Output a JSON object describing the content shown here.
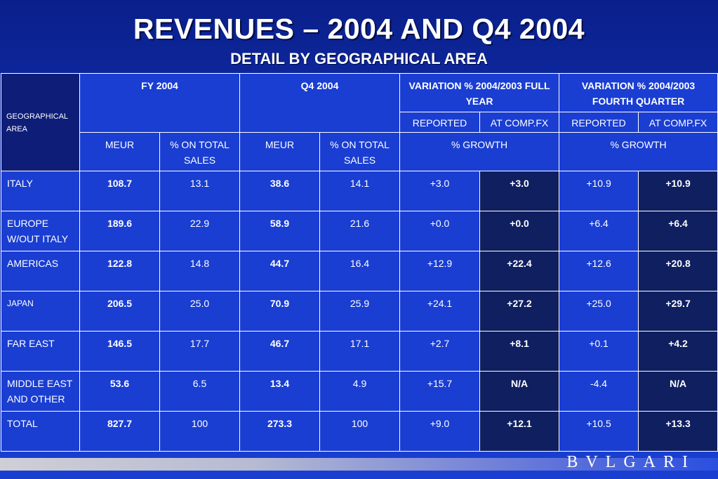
{
  "title": "REVENUES – 2004 AND Q4 2004",
  "subtitle": "DETAIL BY GEOGRAPHICAL AREA",
  "table": {
    "geo_header": "GEOGRAPHICAL AREA",
    "fy_header": "FY 2004",
    "q4_header": "Q4 2004",
    "var_fy_header": "VARIATION % 2004/2003 FULL YEAR",
    "var_q4_header": "VARIATION % 2004/2003 FOURTH QUARTER",
    "reported": "REPORTED",
    "at_comp_fx": "AT COMP.FX",
    "meur": "MEUR",
    "pct_on_total": "% ON TOTAL SALES",
    "pct_growth": "% GROWTH",
    "rows": [
      {
        "area": "ITALY",
        "fy_meur": "108.7",
        "fy_pct": "13.1",
        "q4_meur": "38.6",
        "q4_pct": "14.1",
        "fy_rep": "+3.0",
        "fy_fx": "+3.0",
        "q4_rep": "+10.9",
        "q4_fx": "+10.9"
      },
      {
        "area": "EUROPE W/OUT ITALY",
        "fy_meur": "189.6",
        "fy_pct": "22.9",
        "q4_meur": "58.9",
        "q4_pct": "21.6",
        "fy_rep": "+0.0",
        "fy_fx": "+0.0",
        "q4_rep": "+6.4",
        "q4_fx": "+6.4"
      },
      {
        "area": "AMERICAS",
        "fy_meur": "122.8",
        "fy_pct": "14.8",
        "q4_meur": "44.7",
        "q4_pct": "16.4",
        "fy_rep": "+12.9",
        "fy_fx": "+22.4",
        "q4_rep": "+12.6",
        "q4_fx": "+20.8"
      },
      {
        "area": "JAPAN",
        "fy_meur": "206.5",
        "fy_pct": "25.0",
        "q4_meur": "70.9",
        "q4_pct": "25.9",
        "fy_rep": "+24.1",
        "fy_fx": "+27.2",
        "q4_rep": "+25.0",
        "q4_fx": "+29.7"
      },
      {
        "area": "FAR EAST",
        "fy_meur": "146.5",
        "fy_pct": "17.7",
        "q4_meur": "46.7",
        "q4_pct": "17.1",
        "fy_rep": "+2.7",
        "fy_fx": "+8.1",
        "q4_rep": "+0.1",
        "q4_fx": "+4.2"
      },
      {
        "area": "MIDDLE EAST AND OTHER",
        "fy_meur": "53.6",
        "fy_pct": "6.5",
        "q4_meur": "13.4",
        "q4_pct": "4.9",
        "fy_rep": "+15.7",
        "fy_fx": "N/A",
        "q4_rep": "-4.4",
        "q4_fx": "N/A"
      },
      {
        "area": "TOTAL",
        "fy_meur": "827.7",
        "fy_pct": "100",
        "q4_meur": "273.3",
        "q4_pct": "100",
        "fy_rep": "+9.0",
        "fy_fx": "+12.1",
        "q4_rep": "+10.5",
        "q4_fx": "+13.3"
      }
    ]
  },
  "logo": "BVLGARI",
  "colors": {
    "background": "#1a3fd0",
    "header_dark": "#0e1e78",
    "comp_fx_cell": "#0f1f60",
    "border": "#ffffff"
  }
}
